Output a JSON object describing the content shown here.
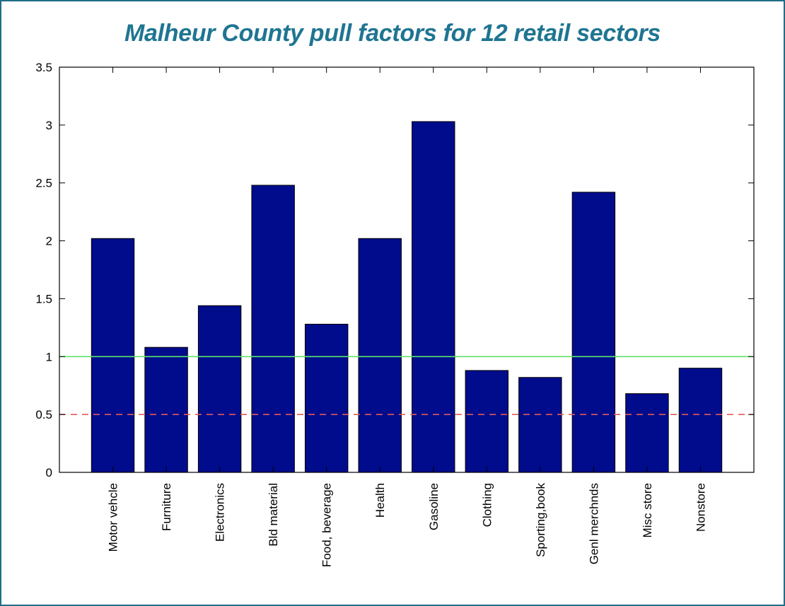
{
  "chart_data": {
    "type": "bar",
    "title": "Malheur County pull factors for 12 retail sectors",
    "categories": [
      "Motor vehcle",
      "Furniture",
      "Electronics",
      "Bld material",
      "Food, beverage",
      "Health",
      "Gasoline",
      "Clothing",
      "Sporting,book",
      "Genl merchnds",
      "Misc store",
      "Nonstore"
    ],
    "values": [
      2.02,
      1.08,
      1.44,
      2.48,
      1.28,
      2.02,
      3.03,
      0.88,
      0.82,
      2.42,
      0.68,
      0.9
    ],
    "xlabel": "",
    "ylabel": "",
    "ylim": [
      0,
      3.5
    ],
    "yticks": [
      "0",
      "0.5",
      "1",
      "1.5",
      "2",
      "2.5",
      "3",
      "3.5"
    ],
    "bar_color": "#000c8c",
    "reference_lines": [
      {
        "value": 1.0,
        "color": "#5fe36a",
        "style": "solid"
      },
      {
        "value": 0.5,
        "color": "#e05a5a",
        "style": "dashed"
      }
    ],
    "grid": false,
    "legend": "none"
  }
}
